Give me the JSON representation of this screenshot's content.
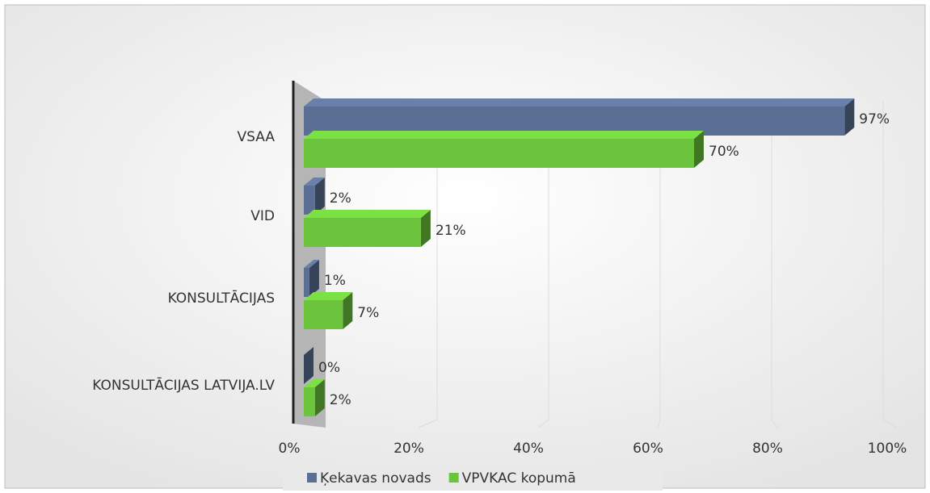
{
  "chart_data": {
    "type": "bar3d_horizontal",
    "categories": [
      "VSAA",
      "VID",
      "KONSULTĀCIJAS",
      "KONSULTĀCIJAS LATVIJA.LV"
    ],
    "series": [
      {
        "name": "Ķekavas novads",
        "color": "#5b6f95",
        "values": [
          97,
          2,
          1,
          0
        ],
        "value_labels": [
          "97%",
          "2%",
          "1%",
          "0%"
        ]
      },
      {
        "name": "VPVKAC kopumā",
        "color": "#6cc43c",
        "values": [
          70,
          21,
          7,
          2
        ],
        "value_labels": [
          "70%",
          "21%",
          "7%",
          "2%"
        ]
      }
    ],
    "xlim": [
      0,
      100
    ],
    "xticks": [
      {
        "value": 0,
        "label": "0%"
      },
      {
        "value": 20,
        "label": "20%"
      },
      {
        "value": 40,
        "label": "40%"
      },
      {
        "value": 60,
        "label": "60%"
      },
      {
        "value": 80,
        "label": "80%"
      },
      {
        "value": 100,
        "label": "100%"
      }
    ],
    "grid": true,
    "legend": "bottom"
  }
}
